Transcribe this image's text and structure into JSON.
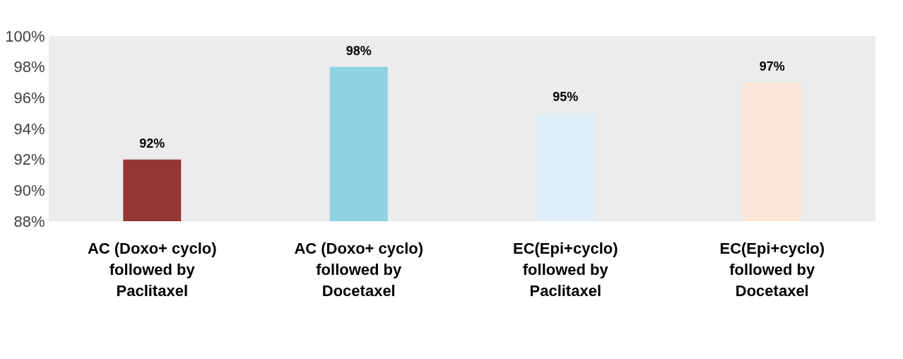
{
  "chart_data": {
    "type": "bar",
    "categories": [
      "AC (Doxo+ cyclo) followed by Paclitaxel",
      "AC (Doxo+ cyclo) followed by Docetaxel",
      "EC(Epi+cyclo) followed by Paclitaxel",
      "EC(Epi+cyclo) followed by Docetaxel"
    ],
    "values": [
      92,
      98,
      95,
      97
    ],
    "colors": [
      "#943634",
      "#8dd3e2",
      "#ddeef6",
      "#fbe5d6"
    ],
    "value_labels": [
      "92%",
      "98%",
      "95%",
      "97%"
    ],
    "ylim": [
      88,
      100
    ],
    "yticks": [
      {
        "value": 88,
        "label": "88%"
      },
      {
        "value": 90,
        "label": "90%"
      },
      {
        "value": 92,
        "label": "92%"
      },
      {
        "value": 94,
        "label": "94%"
      },
      {
        "value": 96,
        "label": "96%"
      },
      {
        "value": 98,
        "label": "98%"
      },
      {
        "value": 100,
        "label": "100%"
      }
    ],
    "grid": false
  }
}
